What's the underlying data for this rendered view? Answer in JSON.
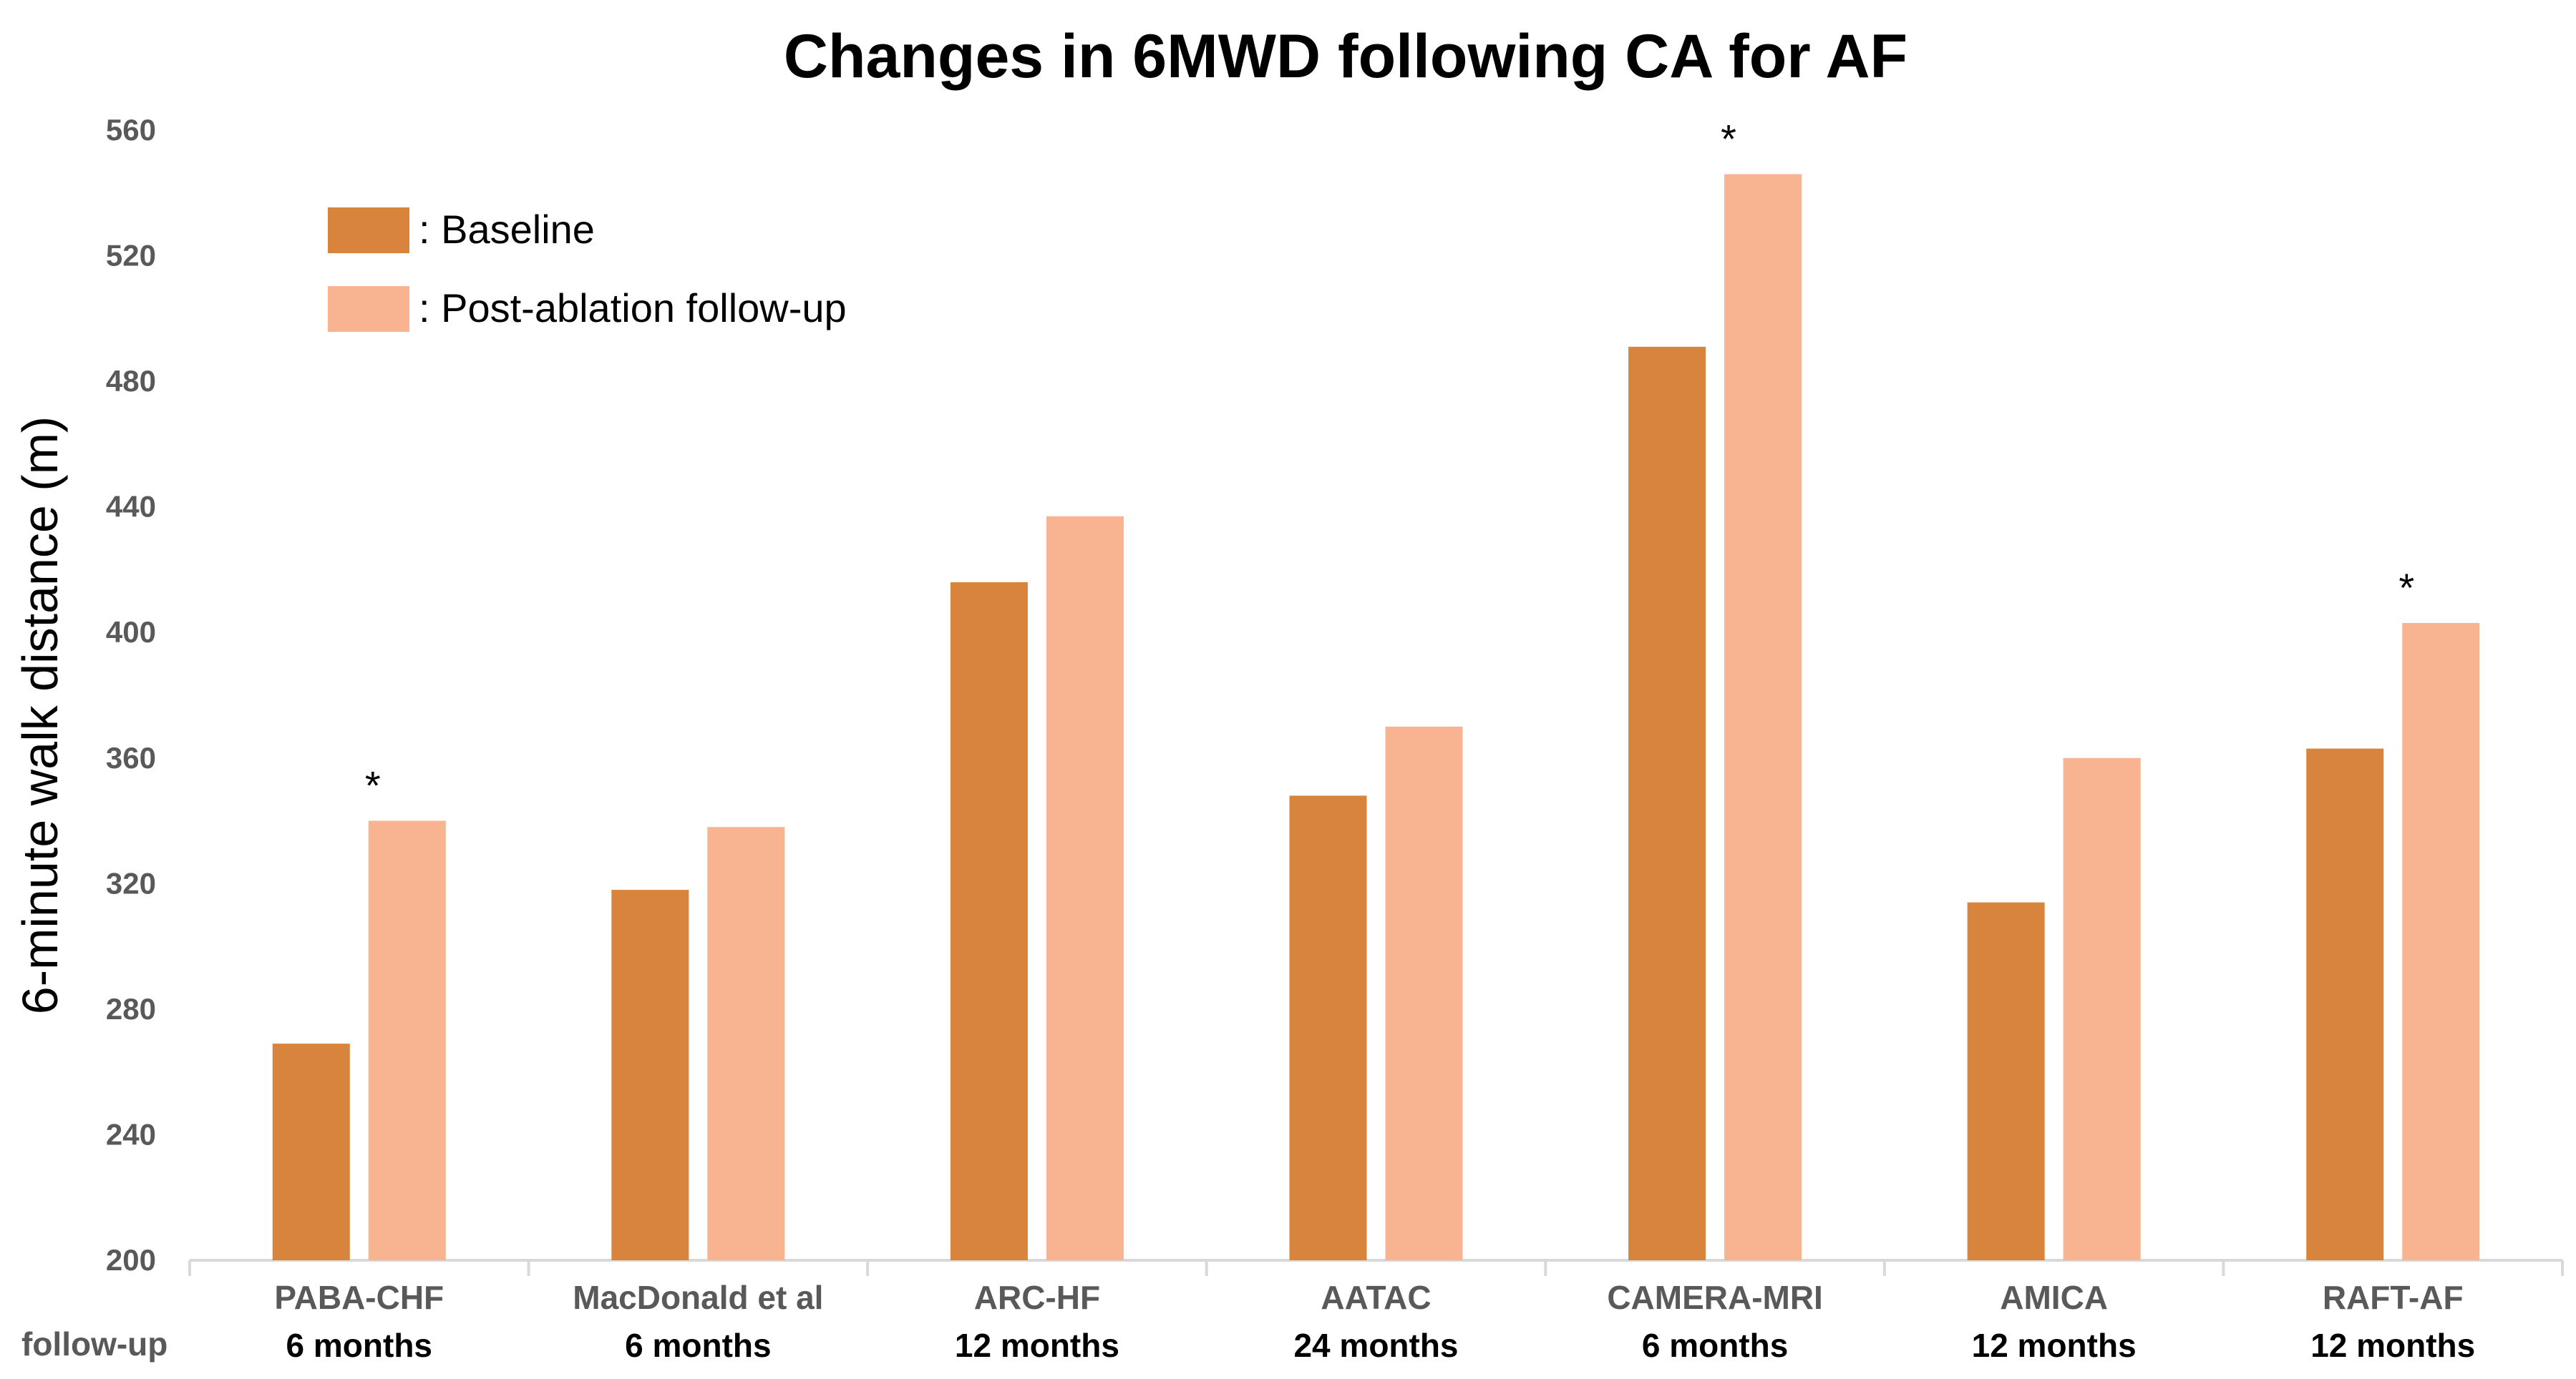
{
  "chart_data": {
    "type": "bar",
    "title": "Changes in 6MWD following CA for AF",
    "ylabel": "6-minute walk distance (m)",
    "xlabel": "",
    "ylim": [
      200,
      560
    ],
    "yticks": [
      200,
      240,
      280,
      320,
      360,
      400,
      440,
      480,
      520,
      560
    ],
    "row_label": "follow-up",
    "categories": [
      "PABA-CHF",
      "MacDonald et al",
      "ARC-HF",
      "AATAC",
      "CAMERA-MRI",
      "AMICA",
      "RAFT-AF"
    ],
    "followup": [
      "6 months",
      "6 months",
      "12 months",
      "24 months",
      "6 months",
      "12 months",
      "12 months"
    ],
    "series": [
      {
        "name": "Baseline",
        "color": "#D9843D",
        "values": [
          269,
          318,
          416,
          348,
          491,
          314,
          363
        ]
      },
      {
        "name": "Post-ablation follow-up",
        "color": "#F8B490",
        "values": [
          340,
          338,
          437,
          370,
          546,
          360,
          403
        ]
      }
    ],
    "legend": [
      {
        "label": ": Baseline",
        "color": "#D9843D"
      },
      {
        "label": ": Post-ablation follow-up",
        "color": "#F8B490"
      }
    ],
    "legend_position": "top-left",
    "significance_marker": "*",
    "significant_categories": [
      "PABA-CHF",
      "CAMERA-MRI",
      "RAFT-AF"
    ],
    "grid": false
  }
}
